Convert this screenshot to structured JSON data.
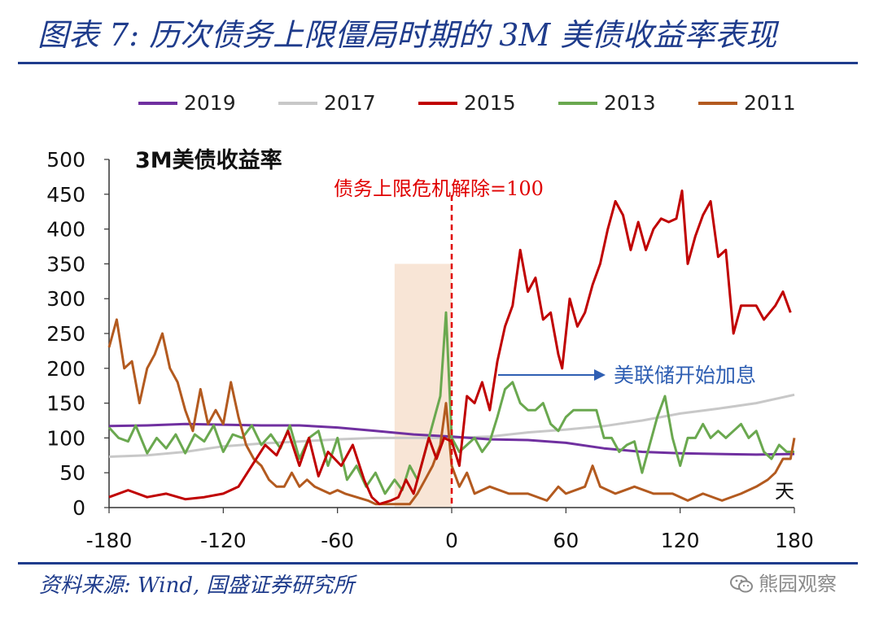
{
  "header": {
    "title": "图表 7:  历次债务上限僵局时期的 3M 美债收益率表现"
  },
  "footer": {
    "source": "资料来源:  Wind,  国盛证券研究所",
    "watermark": "熊园观察"
  },
  "chart_data": {
    "type": "line",
    "title": "3M美债收益率",
    "xlabel": "天",
    "ylabel": "",
    "xlim": [
      -180,
      180
    ],
    "ylim": [
      0,
      500
    ],
    "xticks": [
      -180,
      -120,
      -60,
      0,
      60,
      120,
      180
    ],
    "yticks": [
      0,
      50,
      100,
      150,
      200,
      250,
      300,
      350,
      400,
      450,
      500
    ],
    "legend_position": "top",
    "grid": false,
    "annotations": [
      {
        "text": "债务上限危机解除=100",
        "x": 0,
        "y": 450
      },
      {
        "text": "美联储开始加息",
        "x": 25,
        "y": 190
      }
    ],
    "shaded_region": {
      "x": [
        -30,
        0
      ],
      "y": [
        0,
        350
      ]
    },
    "series": [
      {
        "name": "2019",
        "color": "#7030a0",
        "points": [
          [
            -180,
            117
          ],
          [
            -160,
            118
          ],
          [
            -140,
            120
          ],
          [
            -120,
            119
          ],
          [
            -100,
            118
          ],
          [
            -80,
            118
          ],
          [
            -60,
            115
          ],
          [
            -40,
            110
          ],
          [
            -20,
            105
          ],
          [
            0,
            102
          ],
          [
            20,
            98
          ],
          [
            40,
            97
          ],
          [
            60,
            93
          ],
          [
            80,
            85
          ],
          [
            100,
            80
          ],
          [
            120,
            78
          ],
          [
            140,
            77
          ],
          [
            160,
            76
          ],
          [
            180,
            77
          ]
        ]
      },
      {
        "name": "2017",
        "color": "#c8c8c8",
        "points": [
          [
            -180,
            73
          ],
          [
            -160,
            75
          ],
          [
            -140,
            80
          ],
          [
            -120,
            88
          ],
          [
            -100,
            92
          ],
          [
            -80,
            95
          ],
          [
            -60,
            98
          ],
          [
            -40,
            100
          ],
          [
            -20,
            100
          ],
          [
            0,
            100
          ],
          [
            20,
            102
          ],
          [
            40,
            108
          ],
          [
            60,
            112
          ],
          [
            80,
            117
          ],
          [
            100,
            125
          ],
          [
            120,
            135
          ],
          [
            140,
            142
          ],
          [
            160,
            150
          ],
          [
            180,
            162
          ]
        ]
      },
      {
        "name": "2015",
        "color": "#c00000",
        "points": [
          [
            -180,
            15
          ],
          [
            -170,
            25
          ],
          [
            -160,
            15
          ],
          [
            -150,
            20
          ],
          [
            -140,
            12
          ],
          [
            -130,
            15
          ],
          [
            -120,
            20
          ],
          [
            -112,
            30
          ],
          [
            -105,
            60
          ],
          [
            -98,
            90
          ],
          [
            -92,
            75
          ],
          [
            -86,
            110
          ],
          [
            -80,
            60
          ],
          [
            -75,
            100
          ],
          [
            -70,
            45
          ],
          [
            -65,
            80
          ],
          [
            -58,
            60
          ],
          [
            -52,
            90
          ],
          [
            -46,
            40
          ],
          [
            -42,
            15
          ],
          [
            -38,
            5
          ],
          [
            -32,
            10
          ],
          [
            -28,
            15
          ],
          [
            -24,
            40
          ],
          [
            -20,
            20
          ],
          [
            -16,
            60
          ],
          [
            -12,
            100
          ],
          [
            -8,
            70
          ],
          [
            -4,
            100
          ],
          [
            0,
            95
          ],
          [
            4,
            60
          ],
          [
            8,
            160
          ],
          [
            12,
            150
          ],
          [
            16,
            180
          ],
          [
            20,
            140
          ],
          [
            24,
            210
          ],
          [
            28,
            260
          ],
          [
            32,
            290
          ],
          [
            36,
            370
          ],
          [
            40,
            310
          ],
          [
            44,
            330
          ],
          [
            48,
            270
          ],
          [
            52,
            280
          ],
          [
            56,
            220
          ],
          [
            58,
            200
          ],
          [
            62,
            300
          ],
          [
            66,
            260
          ],
          [
            70,
            280
          ],
          [
            74,
            320
          ],
          [
            78,
            350
          ],
          [
            82,
            400
          ],
          [
            86,
            440
          ],
          [
            90,
            420
          ],
          [
            94,
            370
          ],
          [
            98,
            410
          ],
          [
            102,
            370
          ],
          [
            106,
            400
          ],
          [
            110,
            415
          ],
          [
            114,
            410
          ],
          [
            118,
            415
          ],
          [
            121,
            455
          ],
          [
            124,
            350
          ],
          [
            128,
            390
          ],
          [
            132,
            420
          ],
          [
            136,
            440
          ],
          [
            140,
            360
          ],
          [
            144,
            370
          ],
          [
            148,
            250
          ],
          [
            152,
            290
          ],
          [
            160,
            290
          ],
          [
            164,
            270
          ],
          [
            170,
            290
          ],
          [
            174,
            310
          ],
          [
            178,
            280
          ]
        ]
      },
      {
        "name": "2013",
        "color": "#6aa84f",
        "points": [
          [
            -180,
            115
          ],
          [
            -175,
            100
          ],
          [
            -170,
            95
          ],
          [
            -166,
            118
          ],
          [
            -160,
            78
          ],
          [
            -155,
            100
          ],
          [
            -150,
            85
          ],
          [
            -145,
            105
          ],
          [
            -140,
            78
          ],
          [
            -135,
            105
          ],
          [
            -130,
            95
          ],
          [
            -125,
            118
          ],
          [
            -120,
            80
          ],
          [
            -115,
            105
          ],
          [
            -110,
            100
          ],
          [
            -105,
            118
          ],
          [
            -100,
            90
          ],
          [
            -95,
            105
          ],
          [
            -90,
            85
          ],
          [
            -85,
            118
          ],
          [
            -80,
            70
          ],
          [
            -75,
            100
          ],
          [
            -70,
            110
          ],
          [
            -65,
            60
          ],
          [
            -60,
            100
          ],
          [
            -55,
            40
          ],
          [
            -50,
            60
          ],
          [
            -45,
            30
          ],
          [
            -40,
            50
          ],
          [
            -35,
            20
          ],
          [
            -30,
            40
          ],
          [
            -26,
            25
          ],
          [
            -22,
            60
          ],
          [
            -18,
            40
          ],
          [
            -14,
            80
          ],
          [
            -10,
            120
          ],
          [
            -6,
            160
          ],
          [
            -3,
            280
          ],
          [
            0,
            100
          ],
          [
            4,
            80
          ],
          [
            8,
            90
          ],
          [
            12,
            100
          ],
          [
            16,
            80
          ],
          [
            20,
            95
          ],
          [
            24,
            130
          ],
          [
            28,
            170
          ],
          [
            32,
            180
          ],
          [
            36,
            150
          ],
          [
            40,
            140
          ],
          [
            44,
            140
          ],
          [
            48,
            150
          ],
          [
            52,
            120
          ],
          [
            56,
            110
          ],
          [
            60,
            130
          ],
          [
            64,
            140
          ],
          [
            68,
            140
          ],
          [
            72,
            140
          ],
          [
            76,
            140
          ],
          [
            80,
            100
          ],
          [
            84,
            100
          ],
          [
            88,
            80
          ],
          [
            92,
            90
          ],
          [
            96,
            95
          ],
          [
            100,
            50
          ],
          [
            104,
            90
          ],
          [
            108,
            130
          ],
          [
            112,
            160
          ],
          [
            116,
            100
          ],
          [
            120,
            60
          ],
          [
            124,
            100
          ],
          [
            128,
            100
          ],
          [
            132,
            120
          ],
          [
            136,
            100
          ],
          [
            140,
            110
          ],
          [
            144,
            100
          ],
          [
            148,
            110
          ],
          [
            152,
            120
          ],
          [
            156,
            100
          ],
          [
            160,
            110
          ],
          [
            164,
            80
          ],
          [
            168,
            70
          ],
          [
            172,
            90
          ],
          [
            176,
            80
          ],
          [
            180,
            80
          ]
        ]
      },
      {
        "name": "2011",
        "color": "#b35a1f",
        "points": [
          [
            -180,
            230
          ],
          [
            -176,
            270
          ],
          [
            -172,
            200
          ],
          [
            -168,
            210
          ],
          [
            -164,
            150
          ],
          [
            -160,
            200
          ],
          [
            -156,
            220
          ],
          [
            -152,
            250
          ],
          [
            -148,
            200
          ],
          [
            -144,
            180
          ],
          [
            -140,
            140
          ],
          [
            -136,
            110
          ],
          [
            -132,
            170
          ],
          [
            -128,
            120
          ],
          [
            -124,
            140
          ],
          [
            -120,
            120
          ],
          [
            -116,
            180
          ],
          [
            -112,
            130
          ],
          [
            -108,
            90
          ],
          [
            -104,
            70
          ],
          [
            -100,
            60
          ],
          [
            -96,
            40
          ],
          [
            -92,
            30
          ],
          [
            -88,
            30
          ],
          [
            -84,
            50
          ],
          [
            -80,
            30
          ],
          [
            -76,
            40
          ],
          [
            -72,
            30
          ],
          [
            -68,
            25
          ],
          [
            -64,
            20
          ],
          [
            -60,
            25
          ],
          [
            -56,
            20
          ],
          [
            -50,
            15
          ],
          [
            -44,
            10
          ],
          [
            -40,
            5
          ],
          [
            -34,
            5
          ],
          [
            -28,
            5
          ],
          [
            -22,
            5
          ],
          [
            -18,
            20
          ],
          [
            -14,
            40
          ],
          [
            -10,
            60
          ],
          [
            -6,
            90
          ],
          [
            -3,
            150
          ],
          [
            0,
            60
          ],
          [
            4,
            30
          ],
          [
            8,
            50
          ],
          [
            12,
            20
          ],
          [
            20,
            30
          ],
          [
            30,
            20
          ],
          [
            40,
            20
          ],
          [
            50,
            10
          ],
          [
            56,
            30
          ],
          [
            60,
            20
          ],
          [
            70,
            30
          ],
          [
            74,
            60
          ],
          [
            78,
            30
          ],
          [
            86,
            20
          ],
          [
            96,
            30
          ],
          [
            106,
            20
          ],
          [
            116,
            20
          ],
          [
            124,
            10
          ],
          [
            132,
            20
          ],
          [
            142,
            10
          ],
          [
            152,
            20
          ],
          [
            160,
            30
          ],
          [
            166,
            40
          ],
          [
            170,
            50
          ],
          [
            174,
            70
          ],
          [
            178,
            70
          ],
          [
            180,
            100
          ]
        ]
      }
    ]
  }
}
